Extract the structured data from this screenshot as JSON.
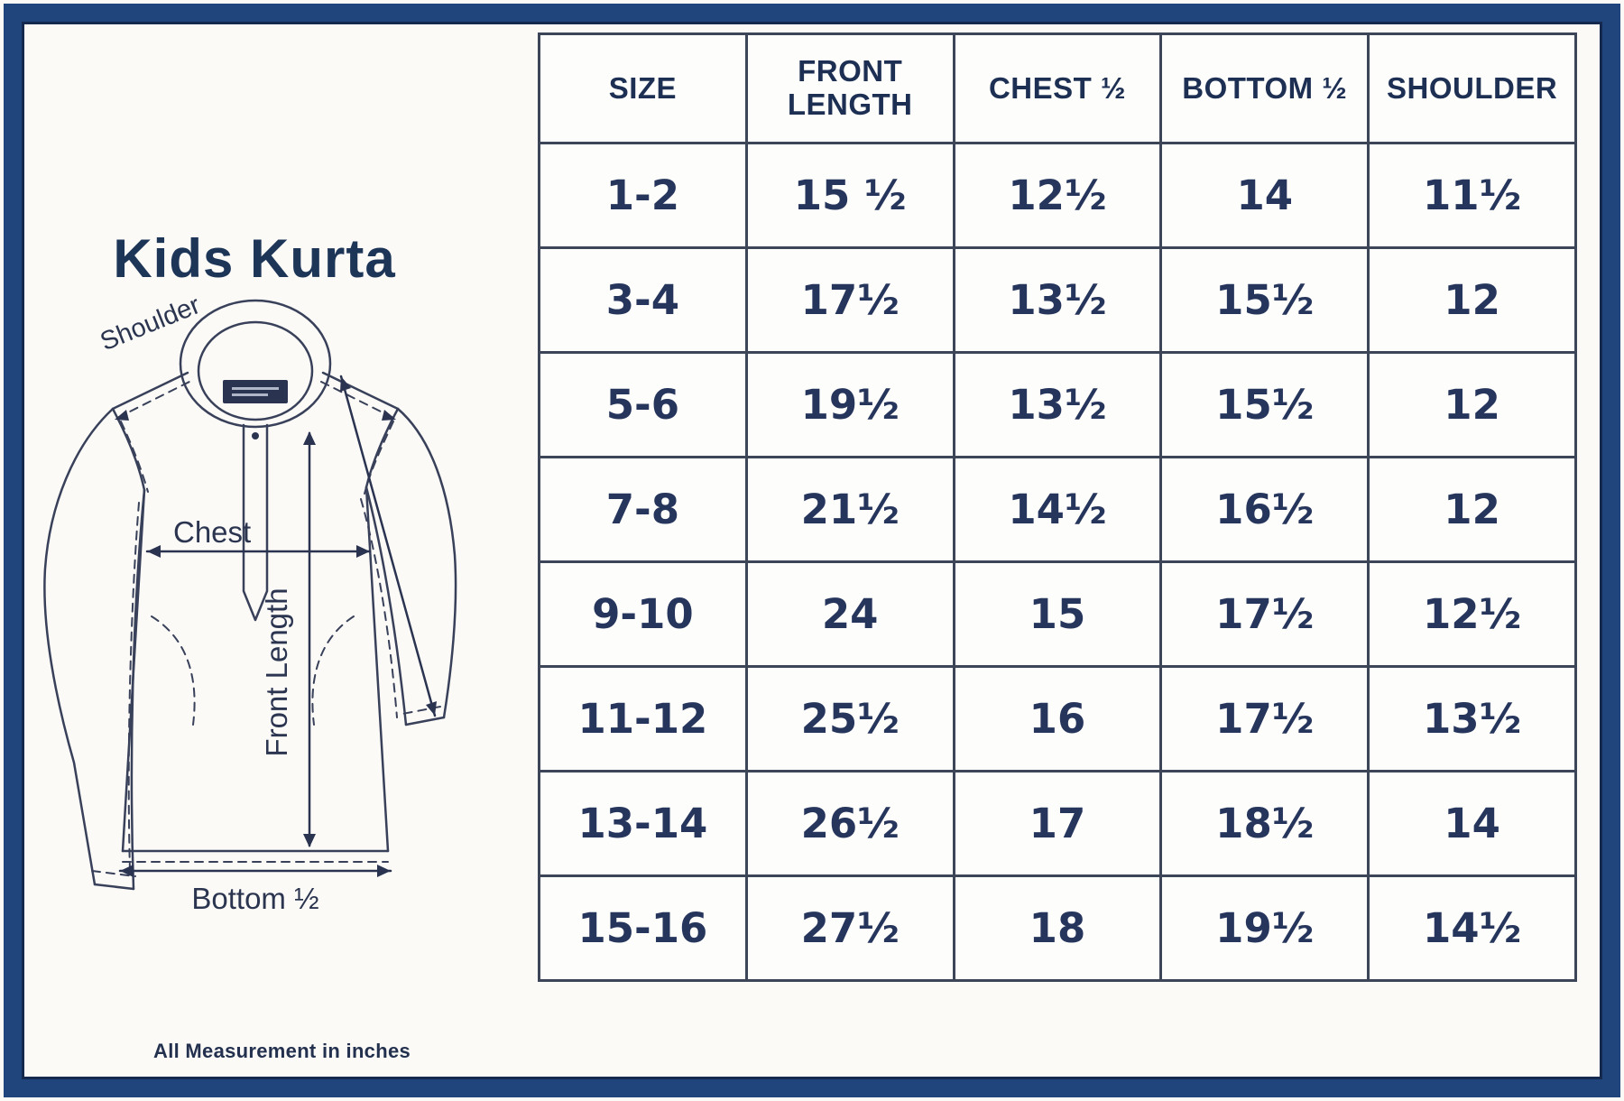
{
  "page": {
    "title": "Kids Kurta",
    "footnote": "All Measurement in inches",
    "colors": {
      "frame": "#20457c",
      "frame_inner_line": "#15294e",
      "background": "#fbfaf7",
      "ink": "#1d3054",
      "table_border": "#3d4559"
    }
  },
  "diagram": {
    "labels": {
      "shoulder": "Shoulder",
      "chest": "Chest",
      "front_length": "Front Length",
      "bottom_half": "Bottom ½"
    }
  },
  "chart_data": {
    "type": "table",
    "title": "Kids Kurta",
    "units": "inches",
    "columns": [
      "SIZE",
      "FRONT LENGTH",
      "CHEST ½",
      "BOTTOM ½",
      "SHOULDER"
    ],
    "rows": [
      [
        "1-2",
        "15 ½",
        "12½",
        "14",
        "11½"
      ],
      [
        "3-4",
        "17½",
        "13½",
        "15½",
        "12"
      ],
      [
        "5-6",
        "19½",
        "13½",
        "15½",
        "12"
      ],
      [
        "7-8",
        "21½",
        "14½",
        "16½",
        "12"
      ],
      [
        "9-10",
        "24",
        "15",
        "17½",
        "12½"
      ],
      [
        "11-12",
        "25½",
        "16",
        "17½",
        "13½"
      ],
      [
        "13-14",
        "26½",
        "17",
        "18½",
        "14"
      ],
      [
        "15-16",
        "27½",
        "18",
        "19½",
        "14½"
      ]
    ]
  }
}
